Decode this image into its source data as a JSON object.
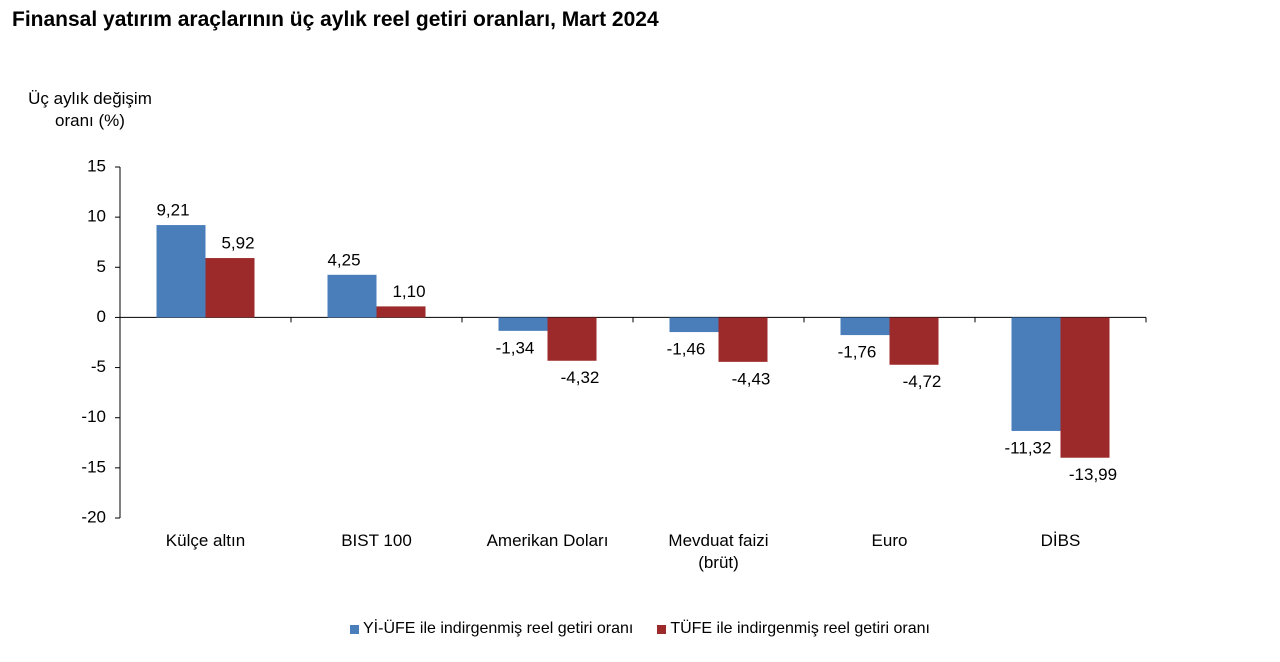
{
  "chart_data": {
    "type": "bar",
    "title": "Finansal yatırım araçlarının üç aylık reel getiri oranları, Mart 2024",
    "y_label": "Üç aylık değişim\noranı (%)",
    "categories": [
      "Külçe altın",
      "BIST 100",
      "Amerikan Doları",
      "Mevduat faizi\n(brüt)",
      "Euro",
      "DİBS"
    ],
    "series": [
      {
        "name": "Yİ-ÜFE ile indirgenmiş reel getiri oranı",
        "color": "#4a7ebb",
        "values": [
          9.21,
          4.25,
          -1.34,
          -1.46,
          -1.76,
          -11.32
        ],
        "value_labels": [
          "9,21",
          "4,25",
          "-1,34",
          "-1,46",
          "-1,76",
          "-11,32"
        ]
      },
      {
        "name": "TÜFE ile indirgenmiş reel getiri oranı",
        "color": "#9c2a2a",
        "values": [
          5.92,
          1.1,
          -4.32,
          -4.43,
          -4.72,
          -13.99
        ],
        "value_labels": [
          "5,92",
          "1,10",
          "-4,32",
          "-4,43",
          "-4,72",
          "-13,99"
        ]
      }
    ],
    "ylim": [
      -20,
      15
    ],
    "yticks": [
      -20,
      -15,
      -10,
      -5,
      0,
      5,
      10,
      15
    ],
    "legend": "bottom"
  }
}
